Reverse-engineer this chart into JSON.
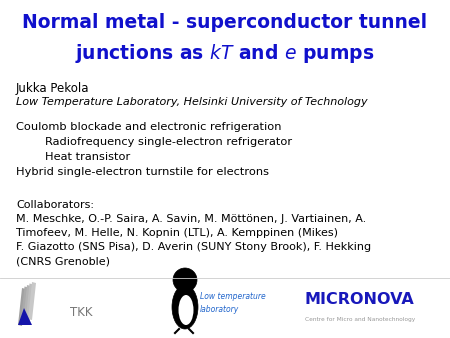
{
  "title_line1": "Normal metal - superconductor tunnel",
  "title_line2": "junctions as $\\mathbf{\\mathit{kT}}$ and $\\mathbf{\\mathit{e}}$ pumps",
  "title_color": "#1010CC",
  "author": "Jukka Pekola",
  "affiliation": "Low Temperature Laboratory, Helsinki University of Technology",
  "body_lines": [
    "Coulomb blockade and electronic refrigeration",
    "        Radiofrequency single-electron refrigerator",
    "        Heat transistor",
    "Hybrid single-electron turnstile for electrons"
  ],
  "collab_header": "Collaborators:",
  "collab_lines": [
    "M. Meschke, O.-P. Saira, A. Savin, M. Möttönen, J. Vartiainen, A.",
    "Timofeev, M. Helle, N. Kopnin (LTL), A. Kemppinen (Mikes)",
    "F. Giazotto (SNS Pisa), D. Averin (SUNY Stony Brook), F. Hekking",
    "(CNRS Grenoble)"
  ],
  "background_color": "#ffffff",
  "text_color": "#000000",
  "micronova_color": "#1818BB",
  "low_temp_color": "#2266CC",
  "gray_text": "#777777"
}
